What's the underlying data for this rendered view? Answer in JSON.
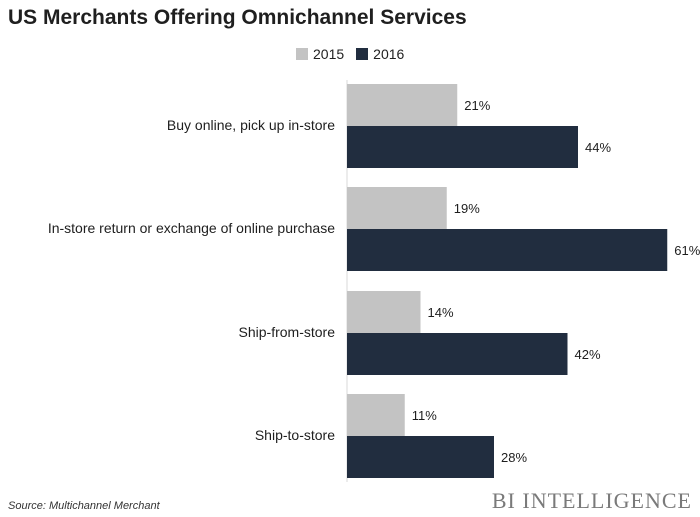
{
  "chart_data": {
    "type": "bar",
    "orientation": "horizontal",
    "title": "US Merchants Offering Omnichannel Services",
    "categories": [
      "Buy online, pick up in-store",
      "In-store return or exchange of online purchase",
      "Ship-from-store",
      "Ship-to-store"
    ],
    "series": [
      {
        "name": "2015",
        "color": "#c3c3c3",
        "values": [
          21,
          19,
          14,
          11
        ],
        "labels": [
          "21%",
          "19%",
          "14%",
          "11%"
        ]
      },
      {
        "name": "2016",
        "color": "#212d3f",
        "values": [
          44,
          61,
          42,
          28
        ],
        "labels": [
          "44%",
          "61%",
          "42%",
          "28%"
        ]
      }
    ],
    "xlim": [
      0,
      61
    ],
    "grid": false,
    "legend_position": "top"
  },
  "footer": {
    "source": "Source: Multichannel Merchant",
    "brand": "BI INTELLIGENCE"
  }
}
